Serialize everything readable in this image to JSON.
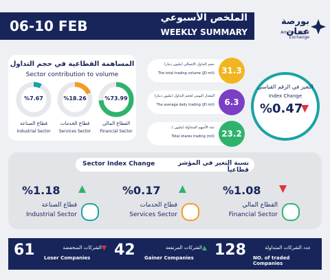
{
  "header": {
    "date": "06-10 FEB",
    "title_ar": "الملخص الأسبوعي",
    "title_en": "WEEKLY SUMMARY",
    "logo_ar": "بورصة عمان",
    "logo_en": "Amman Stock Exchange"
  },
  "sector_contribution": {
    "title_ar": "المساهمة القطاعية في حجم التداول",
    "title_en": "Sector contribution to volume",
    "items": [
      {
        "name_ar": "قطاع الصناعة",
        "name_en": "Industrial Sector",
        "value": 7.67,
        "value_label": "%7.67",
        "color": "#1aa3a3"
      },
      {
        "name_ar": "قطاع الخدمات",
        "name_en": "Services Sector",
        "value": 18.26,
        "value_label": "%18.26",
        "color": "#f39c24"
      },
      {
        "name_ar": "القطاع المالي",
        "name_en": "Financial Sector",
        "value": 73.99,
        "value_label": "%73.99",
        "color": "#2fb36c"
      }
    ]
  },
  "stats": [
    {
      "value": 31.3,
      "label_ar": "حجم التداول الإجمالي (مليون دينار)",
      "label_en": "The total trading volume (JD mil)",
      "color": "#f2b51f"
    },
    {
      "value": 6.3,
      "label_ar": "المعدل اليومي لحجم التداول (مليون دينار)",
      "label_en": "The average daily trading (JD mil)",
      "color": "#7a3fc4"
    },
    {
      "value": 23.2,
      "label_ar": "عدد الأسهم المتداولة (مليون )",
      "label_en": "Total shares trading (mil)",
      "color": "#2fb36c"
    }
  ],
  "index_change": {
    "label_ar": "التغير في الرقم القياسي",
    "label_en": "Index Change",
    "value_label": "%0.47",
    "direction": "down"
  },
  "sector_index": {
    "title_ar": "نسبة التغير في المؤشر قطاعياً",
    "title_en": "Sector Index Change",
    "items": [
      {
        "name_ar": "قطاع الصناعة",
        "name_en": "Industrial Sector",
        "value_label": "%1.18",
        "direction": "up",
        "color": "#1aa3a3"
      },
      {
        "name_ar": "قطاع الخدمات",
        "name_en": "Services Sector",
        "value_label": "%0.17",
        "direction": "up",
        "color": "#f39c24"
      },
      {
        "name_ar": "القطاع المالي",
        "name_en": "Financial Sector",
        "value_label": "%1.08",
        "direction": "down",
        "color": "#2fb36c"
      }
    ]
  },
  "companies": [
    {
      "value": 61,
      "label_ar": "الشركات المنخفضة",
      "label_en": "Loser Companies",
      "direction": "down"
    },
    {
      "value": 42,
      "label_ar": "الشركات المرتفعة",
      "label_en": "Gainer Companies",
      "direction": "up"
    },
    {
      "value": 128,
      "label_ar": "عدد الشركات المتداولة",
      "label_en": "NO. of traded Companies"
    }
  ]
}
